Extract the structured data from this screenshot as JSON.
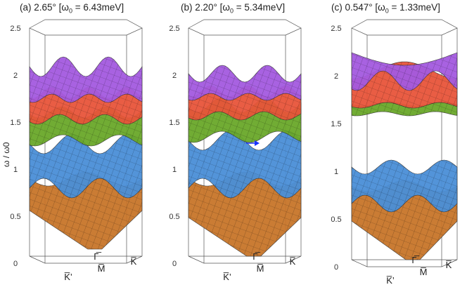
{
  "panels": [
    {
      "label_prefix": "(a) 2.65° [ω",
      "label_sub": "0",
      "label_suffix": " = 6.43meV]"
    },
    {
      "label_prefix": "(b) 2.20° [ω",
      "label_sub": "0",
      "label_suffix": " = 5.34meV]"
    },
    {
      "label_prefix": "(c) 0.547° [ω",
      "label_sub": "0",
      "label_suffix": " = 1.33meV]"
    }
  ],
  "y_axis": {
    "label": "ω / ω0",
    "ticks": [
      "0",
      "0.5",
      "1",
      "1.5",
      "2",
      "2.5"
    ]
  },
  "k_points": {
    "k_prime": "K̅’",
    "m": "M̅",
    "k": "K̅",
    "gamma": "Γ̅"
  },
  "colors": {
    "band1": "#c8752a",
    "band2": "#4a8fd8",
    "band3": "#6aa82a",
    "band4": "#e8553a",
    "band5": "#a45ae0",
    "box": "#555555",
    "arrow": "#1a33ff"
  }
}
